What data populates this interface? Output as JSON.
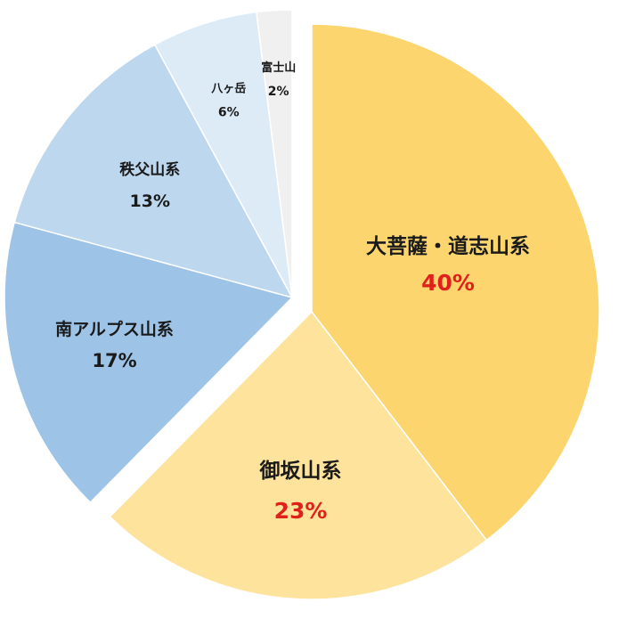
{
  "chart_data": {
    "type": "pie",
    "title": "",
    "legend": "none",
    "slices": [
      {
        "label": "大菩薩・道志山系",
        "value": 40,
        "pct_label": "40%",
        "color": "#FCD56E",
        "label_color": "#1a1a1a",
        "pct_color": "#E0201B",
        "exploded": false
      },
      {
        "label": "御坂山系",
        "value": 23,
        "pct_label": "23%",
        "color": "#FDE39C",
        "label_color": "#1a1a1a",
        "pct_color": "#E0201B",
        "exploded": false
      },
      {
        "label": "南アルプス山系",
        "value": 17,
        "pct_label": "17%",
        "color": "#9DC3E6",
        "label_color": "#1a1a1a",
        "pct_color": "#1a1a1a",
        "exploded": true
      },
      {
        "label": "秩父山系",
        "value": 13,
        "pct_label": "13%",
        "color": "#BDD7EE",
        "label_color": "#1a1a1a",
        "pct_color": "#1a1a1a",
        "exploded": true
      },
      {
        "label": "八ヶ岳",
        "value": 6,
        "pct_label": "6%",
        "color": "#DDEBF7",
        "label_color": "#1a1a1a",
        "pct_color": "#1a1a1a",
        "exploded": true
      },
      {
        "label": "富士山",
        "value": 2,
        "pct_label": "2%",
        "color": "#F0F0F0",
        "label_color": "#1a1a1a",
        "pct_color": "#1a1a1a",
        "exploded": true
      }
    ]
  }
}
